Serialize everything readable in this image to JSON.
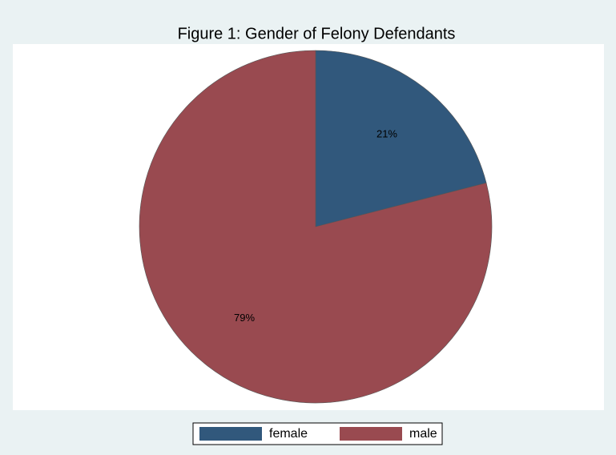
{
  "chart_data": {
    "type": "pie",
    "title": "Figure 1: Gender of Felony Defendants",
    "categories": [
      "female",
      "male"
    ],
    "values": [
      21,
      79
    ],
    "value_labels": [
      "21%",
      "79%"
    ],
    "colors": [
      "#31587c",
      "#994a50"
    ],
    "legend": "bottom"
  }
}
